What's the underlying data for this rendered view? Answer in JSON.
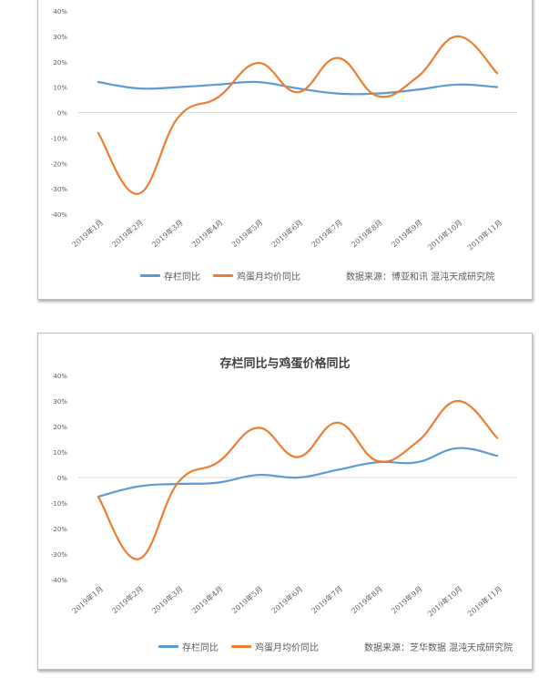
{
  "colors": {
    "inventory": "#5b9bd5",
    "egg_price": "#ed7d31",
    "grid": "#d9d9d9",
    "axis_text": "#595959"
  },
  "chart_data": [
    {
      "type": "line",
      "title": "",
      "categories": [
        "2019年1月",
        "2019年2月",
        "2019年3月",
        "2019年4月",
        "2019年5月",
        "2019年6月",
        "2019年7月",
        "2019年8月",
        "2019年9月",
        "2019年10月",
        "2019年11月"
      ],
      "series": [
        {
          "name": "存栏同比",
          "values": [
            12,
            9.5,
            10,
            11,
            12,
            9.5,
            7.5,
            7.5,
            9,
            11,
            10
          ]
        },
        {
          "name": "鸡蛋月均价同比",
          "values": [
            -8,
            -32,
            -2,
            6,
            19.5,
            8,
            21.5,
            6.5,
            14,
            30,
            15.5
          ]
        }
      ],
      "yticks": [
        "40%",
        "30%",
        "20%",
        "10%",
        "0%",
        "-10%",
        "-20%",
        "-30%",
        "-40%"
      ],
      "ylim": [
        -40,
        40
      ],
      "source": "数据来源：博亚和讯 混沌天成研究院",
      "legend_position": "bottom",
      "grid": false
    },
    {
      "type": "line",
      "title": "存栏同比与鸡蛋价格同比",
      "categories": [
        "2019年1月",
        "2019年2月",
        "2019年3月",
        "2019年4月",
        "2019年5月",
        "2019年6月",
        "2019年7月",
        "2019年8月",
        "2019年9月",
        "2019年10月",
        "2019年11月"
      ],
      "series": [
        {
          "name": "存栏同比",
          "values": [
            -7.5,
            -3.5,
            -2.5,
            -2,
            1,
            0,
            3,
            6,
            6,
            11.5,
            8.5
          ]
        },
        {
          "name": "鸡蛋月均价同比",
          "values": [
            -7.5,
            -32,
            -2,
            6,
            19.5,
            8,
            21.5,
            6.5,
            14,
            30,
            15.5
          ]
        }
      ],
      "yticks": [
        "40%",
        "30%",
        "20%",
        "10%",
        "0%",
        "-10%",
        "-20%",
        "-30%",
        "-40%"
      ],
      "ylim": [
        -40,
        40
      ],
      "source": "数据来源：芝华数据 混沌天成研究院",
      "legend_position": "bottom",
      "grid": false
    }
  ]
}
